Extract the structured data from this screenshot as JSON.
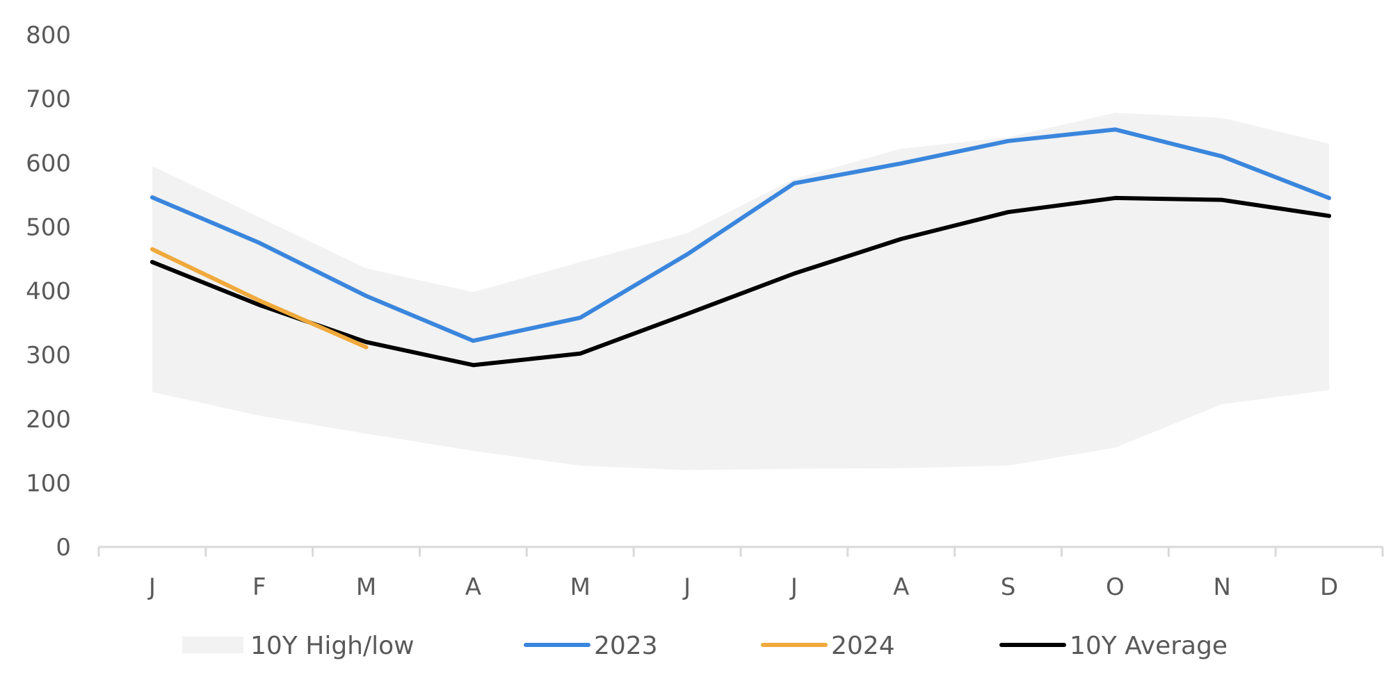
{
  "chart_data": {
    "type": "line",
    "title": "",
    "xlabel": "",
    "ylabel": "",
    "categories": [
      "J",
      "F",
      "M",
      "A",
      "M",
      "J",
      "J",
      "A",
      "S",
      "O",
      "N",
      "D"
    ],
    "ylim": [
      0,
      800
    ],
    "yticks": [
      "0",
      "100",
      "200",
      "300",
      "400",
      "500",
      "600",
      "700",
      "800"
    ],
    "grid": false,
    "legend_position": "bottom",
    "band": {
      "name": "10Y High/low",
      "color": "#f2f2f2",
      "high": [
        595,
        515,
        435,
        398,
        445,
        490,
        575,
        622,
        640,
        678,
        670,
        630
      ],
      "low": [
        242,
        205,
        177,
        150,
        127,
        120,
        122,
        123,
        127,
        155,
        223,
        245
      ]
    },
    "series": [
      {
        "name": "2023",
        "color": "#3a86dd",
        "values": [
          546,
          475,
          392,
          322,
          358,
          457,
          568,
          599,
          634,
          652,
          610,
          545
        ]
      },
      {
        "name": "2024",
        "color": "#f0a93b",
        "values": [
          465,
          385,
          312,
          null,
          null,
          null,
          null,
          null,
          null,
          null,
          null,
          null
        ]
      },
      {
        "name": "10Y Average",
        "color": "#000000",
        "values": [
          445,
          378,
          320,
          284,
          302,
          364,
          427,
          481,
          523,
          545,
          542,
          517
        ]
      }
    ]
  }
}
